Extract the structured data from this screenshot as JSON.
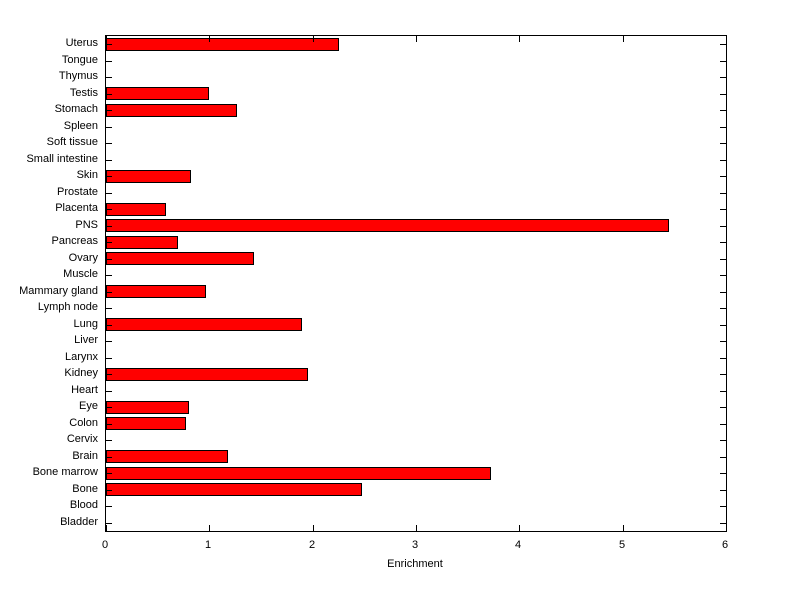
{
  "chart_data": {
    "type": "bar",
    "orientation": "horizontal",
    "title": "",
    "xlabel": "Enrichment",
    "ylabel": "",
    "xlim": [
      0,
      6
    ],
    "xticks": [
      0,
      1,
      2,
      3,
      4,
      5,
      6
    ],
    "grid": false,
    "legend": false,
    "bar_color": "#ff0000",
    "bar_edge_color": "#000000",
    "categories": [
      "Uterus",
      "Tongue",
      "Thymus",
      "Testis",
      "Stomach",
      "Spleen",
      "Soft tissue",
      "Small intestine",
      "Skin",
      "Prostate",
      "Placenta",
      "PNS",
      "Pancreas",
      "Ovary",
      "Muscle",
      "Mammary gland",
      "Lymph node",
      "Lung",
      "Liver",
      "Larynx",
      "Kidney",
      "Heart",
      "Eye",
      "Colon",
      "Cervix",
      "Brain",
      "Bone marrow",
      "Bone",
      "Blood",
      "Bladder"
    ],
    "values": [
      2.25,
      0,
      0,
      1.0,
      1.27,
      0,
      0,
      0,
      0.82,
      0,
      0.58,
      5.45,
      0.7,
      1.43,
      0,
      0.97,
      0,
      1.9,
      0,
      0,
      1.95,
      0,
      0.8,
      0.77,
      0,
      1.18,
      3.73,
      2.48,
      0,
      0
    ]
  }
}
